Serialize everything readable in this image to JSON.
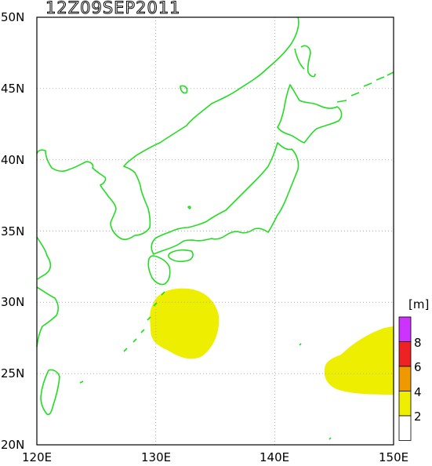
{
  "title": "12Z09SEP2011",
  "axes": {
    "x_ticks": [
      "120E",
      "130E",
      "140E",
      "150E"
    ],
    "y_ticks": [
      "20N",
      "25N",
      "30N",
      "35N",
      "40N",
      "45N",
      "50N"
    ],
    "lon_range": [
      120,
      150
    ],
    "lat_range": [
      20,
      50
    ],
    "grid": true
  },
  "colors": {
    "coastline": "#22dd22",
    "grid": "#b0b0b0",
    "frame": "#000000"
  },
  "legend": {
    "unit": "[m]",
    "labels": [
      "8",
      "6",
      "4",
      "2"
    ],
    "bins": [
      {
        "color": "#cc33ff",
        "range": "8+"
      },
      {
        "color": "#ee2222",
        "range": "6-8"
      },
      {
        "color": "#ee9900",
        "range": "4-6"
      },
      {
        "color": "#eeee00",
        "range": "2-4"
      },
      {
        "color": "#ffffff",
        "range": "0-2"
      }
    ]
  },
  "wave_regions": [
    {
      "name": "south of Kyushu",
      "level": "2-4 m",
      "color": "#eeee00"
    },
    {
      "name": "east of Bonin",
      "level": "2-4 m",
      "color": "#eeee00"
    }
  ]
}
